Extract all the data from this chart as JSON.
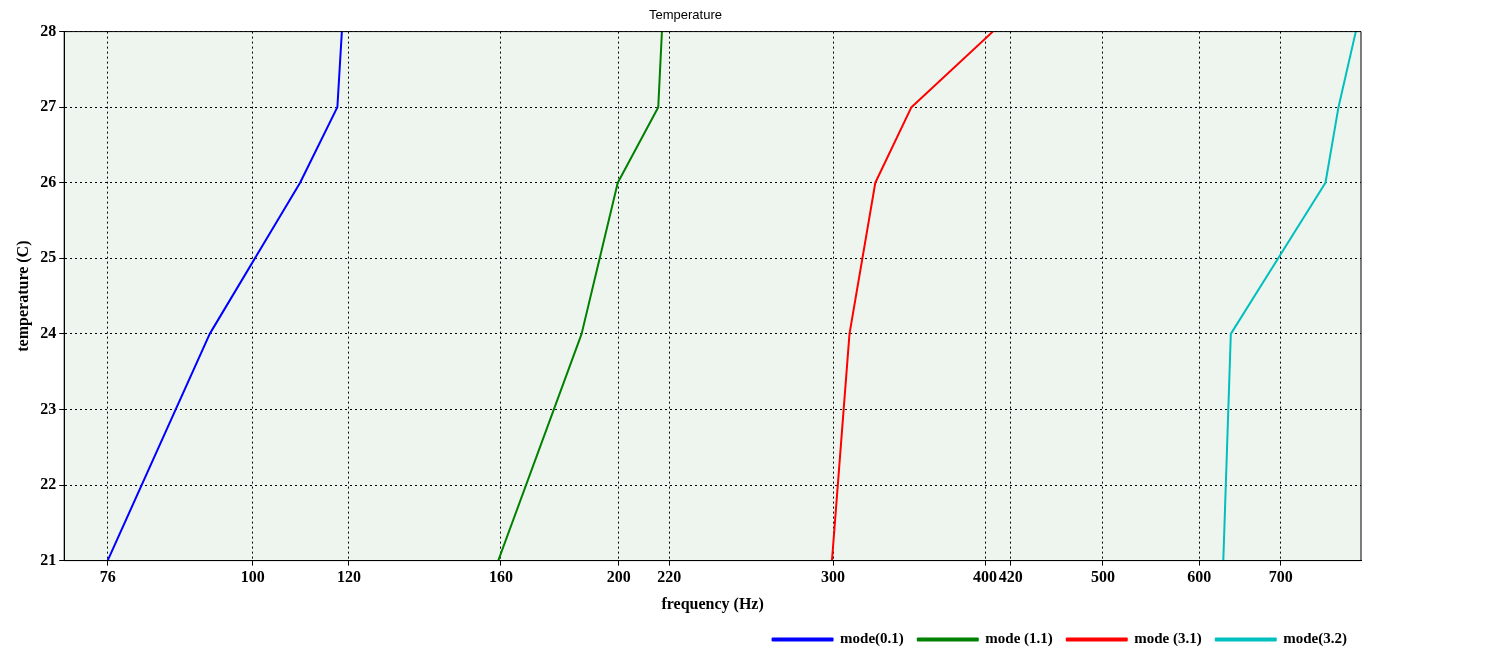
{
  "chart_data": {
    "type": "line",
    "title": "Temperature",
    "xlabel": "frequency (Hz)",
    "ylabel": "temperature (C)",
    "log": "x",
    "xlim": [
      70,
      815
    ],
    "xticks": [
      76,
      100,
      120,
      160,
      200,
      220,
      300,
      400,
      420,
      500,
      600,
      700
    ],
    "ylim": [
      21,
      28
    ],
    "yticks": [
      21,
      22,
      23,
      24,
      25,
      26,
      27,
      28
    ],
    "grid": true,
    "legend": "bottom right",
    "marker": "none",
    "line_style": "solid",
    "series": [
      {
        "name": "mode(0.1)",
        "color": "#0000ff",
        "x": [
          76,
          92.2,
          109.4,
          117.4,
          118.4
        ],
        "values": [
          21,
          24,
          26,
          27,
          28
        ]
      },
      {
        "name": "mode (1.1)",
        "color": "#008000",
        "x": [
          159.2,
          186.4,
          199.6,
          215.5,
          217
        ],
        "values": [
          21,
          24,
          26,
          27,
          28
        ]
      },
      {
        "name": "mode (3.1)",
        "color": "#ff0000",
        "x": [
          299.4,
          309.5,
          325,
          348,
          406
        ],
        "values": [
          21,
          24,
          26,
          27,
          28
        ]
      },
      {
        "name": "mode(3.2)",
        "color": "#00bfbf",
        "x": [
          628,
          637,
          762,
          781,
          807
        ],
        "values": [
          21,
          24,
          26,
          27,
          28
        ]
      }
    ]
  }
}
